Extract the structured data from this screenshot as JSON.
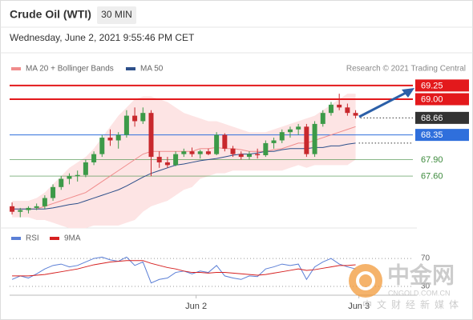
{
  "header": {
    "title": "Crude Oil (WTI)",
    "timeframe": "30 MIN",
    "date": "Wednesday, June 2, 2021 9:55:46 PM CET",
    "credit": "Research © 2021 Trading Central"
  },
  "chart_data": {
    "type": "candlestick",
    "xlim": [
      -0.3,
      49
    ],
    "xticks": [
      {
        "value": 22.5,
        "label": "Jun 2"
      },
      {
        "value": 42.4,
        "label": "Jun 3"
      }
    ],
    "ylim": [
      66.8,
      69.35
    ],
    "up_color": "#3c9a48",
    "down_color": "#c8282d",
    "candles": {
      "open": [
        67.05,
        66.95,
        66.98,
        67.02,
        67.05,
        67.2,
        67.4,
        67.55,
        67.6,
        67.62,
        67.85,
        68.0,
        68.3,
        68.25,
        68.35,
        68.7,
        68.6,
        68.75,
        67.95,
        67.85,
        67.8,
        68.0,
        68.05,
        68.0,
        68.05,
        68.0,
        68.35,
        68.1,
        68.0,
        67.95,
        68.0,
        67.98,
        68.2,
        68.25,
        68.4,
        68.45,
        68.5,
        68.0,
        68.55,
        68.75,
        68.9,
        68.85,
        68.75
      ],
      "high": [
        67.12,
        67.02,
        67.05,
        67.1,
        67.25,
        67.45,
        67.6,
        67.65,
        67.7,
        67.9,
        68.05,
        68.35,
        68.45,
        68.4,
        68.8,
        68.85,
        68.85,
        68.8,
        68.05,
        67.95,
        68.05,
        68.1,
        68.12,
        68.08,
        68.1,
        68.4,
        68.38,
        68.15,
        68.05,
        68.05,
        68.1,
        68.25,
        68.3,
        68.45,
        68.5,
        68.55,
        68.55,
        68.6,
        68.8,
        68.95,
        69.1,
        68.92,
        68.8
      ],
      "low": [
        66.9,
        66.85,
        66.92,
        66.98,
        67.0,
        67.15,
        67.35,
        67.45,
        67.5,
        67.58,
        67.8,
        67.95,
        68.15,
        68.1,
        68.3,
        68.5,
        68.55,
        67.6,
        67.75,
        67.75,
        67.78,
        67.95,
        67.95,
        67.92,
        67.98,
        67.98,
        68.05,
        67.95,
        67.9,
        67.9,
        67.92,
        67.95,
        68.1,
        68.2,
        68.3,
        68.35,
        67.95,
        67.95,
        68.5,
        68.7,
        68.8,
        68.7,
        68.65
      ],
      "close": [
        66.95,
        66.98,
        67.02,
        67.05,
        67.2,
        67.4,
        67.55,
        67.6,
        67.62,
        67.85,
        68.0,
        68.3,
        68.25,
        68.35,
        68.7,
        68.6,
        68.75,
        67.95,
        67.85,
        67.8,
        68.0,
        68.05,
        68.0,
        68.05,
        68.0,
        68.35,
        68.1,
        68.0,
        67.95,
        68.0,
        67.98,
        68.2,
        68.25,
        68.4,
        68.45,
        68.5,
        68.0,
        68.55,
        68.75,
        68.9,
        68.85,
        68.75,
        68.7
      ]
    },
    "series": [
      {
        "name": "MA 20 + Bollinger Bands",
        "color": "#f08c8c",
        "band_color": "#fde4e4",
        "values": [
          67.0,
          67.0,
          67.0,
          67.0,
          67.05,
          67.1,
          67.15,
          67.2,
          67.25,
          67.3,
          67.4,
          67.5,
          67.6,
          67.7,
          67.8,
          67.9,
          68.0,
          68.05,
          68.05,
          68.05,
          68.05,
          68.05,
          68.05,
          68.1,
          68.1,
          68.12,
          68.1,
          68.1,
          68.08,
          68.05,
          68.05,
          68.05,
          68.08,
          68.1,
          68.15,
          68.2,
          68.2,
          68.25,
          68.3,
          68.35,
          68.4,
          68.45,
          68.5
        ],
        "upper": [
          67.15,
          67.15,
          67.15,
          67.2,
          67.3,
          67.45,
          67.6,
          67.75,
          67.85,
          67.95,
          68.1,
          68.3,
          68.5,
          68.7,
          68.85,
          69.0,
          69.05,
          69.05,
          69.0,
          68.95,
          68.85,
          68.75,
          68.7,
          68.65,
          68.6,
          68.6,
          68.55,
          68.5,
          68.45,
          68.4,
          68.4,
          68.4,
          68.45,
          68.5,
          68.55,
          68.6,
          68.65,
          68.7,
          68.8,
          68.9,
          69.0,
          69.1,
          69.1
        ],
        "lower": [
          66.85,
          66.85,
          66.85,
          66.8,
          66.8,
          66.75,
          66.7,
          66.65,
          66.65,
          66.65,
          66.7,
          66.7,
          66.7,
          66.7,
          66.75,
          66.8,
          66.95,
          67.05,
          67.1,
          67.15,
          67.25,
          67.35,
          67.4,
          67.55,
          67.6,
          67.65,
          67.65,
          67.7,
          67.7,
          67.7,
          67.7,
          67.7,
          67.7,
          67.7,
          67.75,
          67.8,
          67.75,
          67.8,
          67.8,
          67.8,
          67.8,
          67.8,
          67.9
        ]
      },
      {
        "name": "MA 50",
        "color": "#2d4f8a",
        "values": [
          67.0,
          67.0,
          67.0,
          67.0,
          67.0,
          67.02,
          67.05,
          67.08,
          67.1,
          67.15,
          67.2,
          67.25,
          67.3,
          67.35,
          67.42,
          67.5,
          67.58,
          67.65,
          67.7,
          67.75,
          67.8,
          67.82,
          67.85,
          67.88,
          67.9,
          67.92,
          67.95,
          67.98,
          68.0,
          68.0,
          68.02,
          68.05,
          68.05,
          68.08,
          68.1,
          68.1,
          68.1,
          68.12,
          68.12,
          68.15,
          68.15,
          68.18,
          68.2
        ]
      }
    ],
    "levels": [
      {
        "value": 69.25,
        "color": "#e3191c",
        "kind": "box",
        "line": "solid"
      },
      {
        "value": 69,
        "label": "69.00",
        "color": "#e3191c",
        "kind": "box",
        "line": "solid"
      },
      {
        "value": 68.66,
        "color": "#333333",
        "kind": "box",
        "line": "dotted"
      },
      {
        "value": 68.35,
        "color": "#2f6fdc",
        "kind": "box",
        "line": "solid"
      },
      {
        "value": 67.9,
        "label": "67.90",
        "color": "#3c8a3c",
        "kind": "text",
        "line": "solid"
      },
      {
        "value": 67.6,
        "label": "67.60",
        "color": "#3c8a3c",
        "kind": "text",
        "line": "solid"
      }
    ],
    "rsi": {
      "ylim": [
        22,
        85
      ],
      "yticks": [
        70,
        30
      ],
      "series": [
        {
          "name": "RSI",
          "color": "#5b7fd6",
          "values": [
            40,
            45,
            42,
            48,
            55,
            60,
            62,
            58,
            60,
            65,
            70,
            72,
            68,
            66,
            72,
            60,
            65,
            35,
            40,
            42,
            50,
            52,
            48,
            52,
            50,
            60,
            45,
            42,
            40,
            45,
            44,
            55,
            58,
            62,
            60,
            62,
            40,
            58,
            65,
            70,
            62,
            58,
            55
          ]
        },
        {
          "name": "9MA",
          "color": "#d62020",
          "values": [
            45,
            45,
            45,
            46,
            47,
            49,
            51,
            53,
            55,
            58,
            61,
            63,
            65,
            66,
            67,
            67,
            67,
            63,
            60,
            57,
            55,
            52,
            50,
            50,
            49,
            50,
            50,
            49,
            48,
            47,
            46,
            47,
            49,
            51,
            53,
            55,
            53,
            54,
            56,
            58,
            60,
            60,
            61
          ]
        }
      ]
    }
  },
  "watermark": {
    "name": "中金网",
    "domain": "CNGOLD.COM.CN",
    "tagline": "中文财经新媒体"
  }
}
